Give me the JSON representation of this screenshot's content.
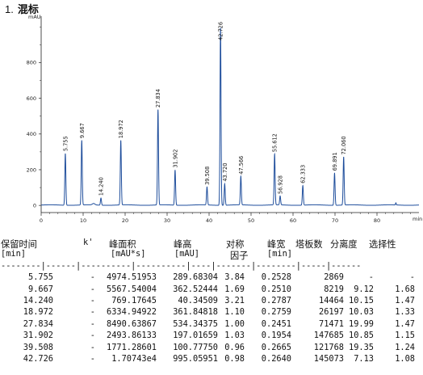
{
  "section": {
    "number": "1.",
    "title": "混标"
  },
  "chart_data": {
    "type": "line",
    "ylabel": "mAU",
    "xlabel": "min",
    "xlim": [
      0,
      90
    ],
    "ylim": [
      -40,
      1060
    ],
    "x_ticks": [
      0,
      10,
      20,
      30,
      40,
      50,
      60,
      70,
      80
    ],
    "y_ticks": [
      0,
      200,
      400,
      600,
      800
    ],
    "grid": false,
    "line_color": "#1f4e9c",
    "series": [
      {
        "peaks": [
          {
            "label": "5.755",
            "time": 5.755,
            "height": 289.68
          },
          {
            "label": "9.667",
            "time": 9.667,
            "height": 362.52
          },
          {
            "label": "14.240",
            "time": 14.24,
            "height": 40.35
          },
          {
            "label": "18.972",
            "time": 18.972,
            "height": 361.85
          },
          {
            "label": "27.834",
            "time": 27.834,
            "height": 534.34
          },
          {
            "label": "31.902",
            "time": 31.902,
            "height": 197.02
          },
          {
            "label": "39.508",
            "time": 39.508,
            "height": 100.78
          },
          {
            "label": "42.726",
            "time": 42.726,
            "height": 995.06
          },
          {
            "label": "43.720",
            "time": 43.72,
            "height": 120
          },
          {
            "label": "47.566",
            "time": 47.566,
            "height": 160
          },
          {
            "label": "55.612",
            "time": 55.612,
            "height": 285
          },
          {
            "label": "56.928",
            "time": 56.928,
            "height": 50
          },
          {
            "label": "62.333",
            "time": 62.333,
            "height": 110
          },
          {
            "label": "69.891",
            "time": 69.891,
            "height": 180
          },
          {
            "label": "72.060",
            "time": 72.06,
            "height": 270
          }
        ]
      }
    ]
  },
  "table": {
    "headers_row1": [
      "保留时间",
      "k'",
      "峰面积",
      "峰高",
      "对称",
      "峰宽",
      "塔板数",
      "分离度",
      "选择性"
    ],
    "headers_row2": [
      "[min]",
      "",
      "[mAU*s]",
      "[mAU]",
      "因子",
      "[min]",
      "",
      "",
      ""
    ],
    "separator": "--------|------|----------|----------|----|-------|--------|-----|------",
    "rows": [
      [
        "5.755",
        "-",
        "4974.51953",
        "289.68304",
        "3.84",
        "0.2528",
        "2869",
        "-",
        "-"
      ],
      [
        "9.667",
        "-",
        "5567.54004",
        "362.52444",
        "1.69",
        "0.2510",
        "8219",
        "9.12",
        "1.68"
      ],
      [
        "14.240",
        "-",
        "769.17645",
        "40.34509",
        "3.21",
        "0.2787",
        "14464",
        "10.15",
        "1.47"
      ],
      [
        "18.972",
        "-",
        "6334.94922",
        "361.84818",
        "1.10",
        "0.2759",
        "26197",
        "10.03",
        "1.33"
      ],
      [
        "27.834",
        "-",
        "8490.63867",
        "534.34375",
        "1.00",
        "0.2451",
        "71471",
        "19.99",
        "1.47"
      ],
      [
        "31.902",
        "-",
        "2493.86133",
        "197.01659",
        "1.03",
        "0.1954",
        "147685",
        "10.85",
        "1.15"
      ],
      [
        "39.508",
        "-",
        "1771.28601",
        "100.77750",
        "0.96",
        "0.2665",
        "121768",
        "19.35",
        "1.24"
      ],
      [
        "42.726",
        "-",
        "1.70743e4",
        "995.05951",
        "0.98",
        "0.2640",
        "145073",
        "7.13",
        "1.08"
      ]
    ]
  }
}
